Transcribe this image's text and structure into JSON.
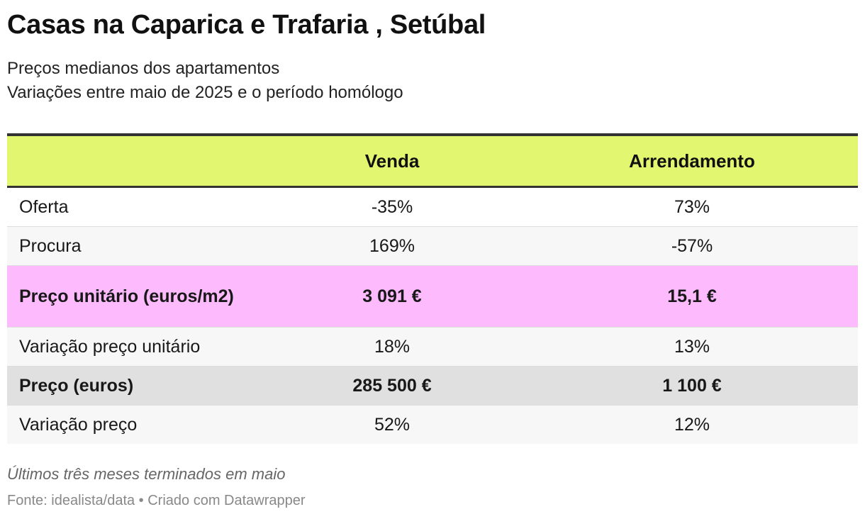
{
  "chart_data": {
    "type": "table",
    "title": "Casas na Caparica e Trafaria , Setúbal",
    "subtitle": [
      "Preços medianos dos apartamentos",
      "Variações entre maio de 2025 e o período homólogo"
    ],
    "columns": [
      "",
      "Venda",
      "Arrendamento"
    ],
    "rows": [
      {
        "label": "Oferta",
        "venda": "-35%",
        "arrendamento": "73%",
        "highlight": "none"
      },
      {
        "label": "Procura",
        "venda": "169%",
        "arrendamento": "-57%",
        "highlight": "none"
      },
      {
        "label": "Preço unitário (euros/m2)",
        "venda": "3 091 €",
        "arrendamento": "15,1 €",
        "highlight": "pink"
      },
      {
        "label": "Variação preço unitário",
        "venda": "18%",
        "arrendamento": "13%",
        "highlight": "none"
      },
      {
        "label": "Preço (euros)",
        "venda": "285 500 €",
        "arrendamento": "1 100 €",
        "highlight": "grey"
      },
      {
        "label": "Variação preço",
        "venda": "52%",
        "arrendamento": "12%",
        "highlight": "none"
      }
    ],
    "notes": "Últimos três meses terminados em maio",
    "source": "Fonte: idealista/data • Criado com Datawrapper"
  },
  "colors": {
    "header_background": "#e3f66f",
    "highlight_pink": "#fdbafd",
    "highlight_grey": "#e0e0e0",
    "rule": "#333333"
  }
}
